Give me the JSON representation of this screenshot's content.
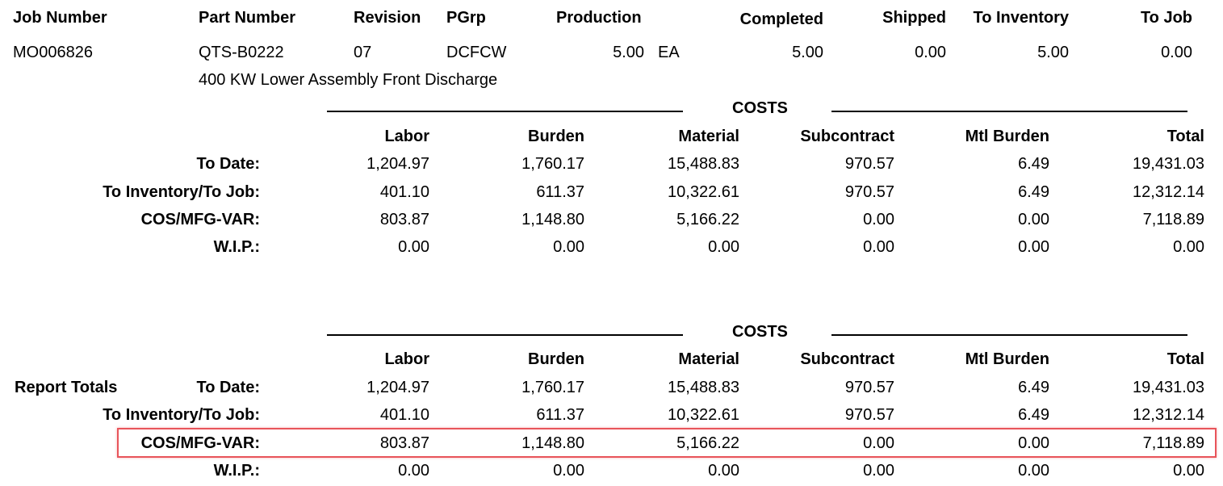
{
  "job_header": {
    "job_number_label": "Job Number",
    "part_number_label": "Part Number",
    "revision_label": "Revision",
    "pgrp_label": "PGrp",
    "production_label": "Production",
    "completed_label": "Completed",
    "shipped_label": "Shipped",
    "to_inventory_label": "To Inventory",
    "to_job_label": "To Job"
  },
  "job": {
    "job_number": "MO006826",
    "part_number": "QTS-B0222",
    "revision": "07",
    "pgrp": "DCFCW",
    "production": "5.00",
    "uom": "EA",
    "completed": "5.00",
    "shipped": "0.00",
    "to_inventory": "5.00",
    "to_job": "0.00",
    "description": "400 KW Lower Assembly Front Discharge"
  },
  "job_costs": {
    "title": "COSTS",
    "columns": [
      "Labor",
      "Burden",
      "Material",
      "Subcontract",
      "Mtl Burden",
      "Total"
    ],
    "rows": [
      {
        "label": "To Date:",
        "values": [
          "1,204.97",
          "1,760.17",
          "15,488.83",
          "970.57",
          "6.49",
          "19,431.03"
        ]
      },
      {
        "label": "To Inventory/To Job:",
        "values": [
          "401.10",
          "611.37",
          "10,322.61",
          "970.57",
          "6.49",
          "12,312.14"
        ]
      },
      {
        "label": "COS/MFG-VAR:",
        "values": [
          "803.87",
          "1,148.80",
          "5,166.22",
          "0.00",
          "0.00",
          "7,118.89"
        ]
      },
      {
        "label": "W.I.P.:",
        "values": [
          "0.00",
          "0.00",
          "0.00",
          "0.00",
          "0.00",
          "0.00"
        ]
      }
    ]
  },
  "report_totals": {
    "label": "Report Totals",
    "title": "COSTS",
    "columns": [
      "Labor",
      "Burden",
      "Material",
      "Subcontract",
      "Mtl Burden",
      "Total"
    ],
    "rows": [
      {
        "label": "To Date:",
        "values": [
          "1,204.97",
          "1,760.17",
          "15,488.83",
          "970.57",
          "6.49",
          "19,431.03"
        ]
      },
      {
        "label": "To Inventory/To Job:",
        "values": [
          "401.10",
          "611.37",
          "10,322.61",
          "970.57",
          "6.49",
          "12,312.14"
        ]
      },
      {
        "label": "COS/MFG-VAR:",
        "values": [
          "803.87",
          "1,148.80",
          "5,166.22",
          "0.00",
          "0.00",
          "7,118.89"
        ]
      },
      {
        "label": "W.I.P.:",
        "values": [
          "0.00",
          "0.00",
          "0.00",
          "0.00",
          "0.00",
          "0.00"
        ]
      }
    ]
  },
  "highlight": {
    "color": "#e8545a"
  }
}
